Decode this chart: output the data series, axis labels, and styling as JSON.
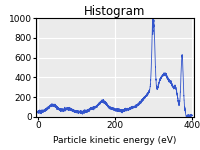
{
  "title": "Histogram",
  "xlabel": "Particle kinetic energy (eV)",
  "ylabel": "",
  "xlim": [
    -5,
    405
  ],
  "ylim": [
    0,
    1000
  ],
  "line_color": "#3355cc",
  "background_color": "#ebebeb",
  "yticks": [
    0,
    200,
    400,
    600,
    800,
    1000
  ],
  "xticks": [
    0,
    200,
    400
  ],
  "figsize": [
    2.0,
    1.5
  ],
  "dpi": 100
}
